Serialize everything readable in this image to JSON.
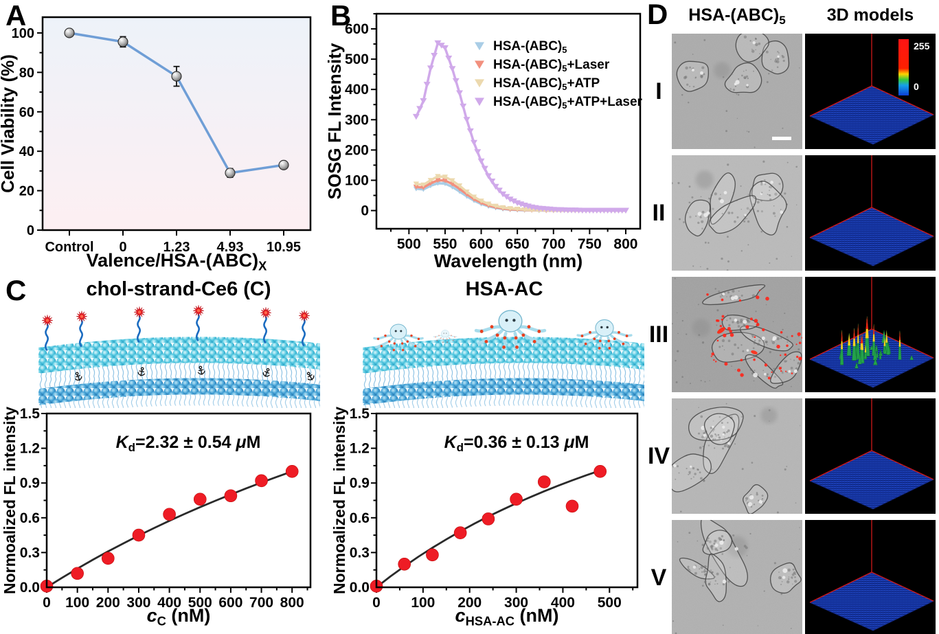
{
  "panels": {
    "a": {
      "label": "A"
    },
    "b": {
      "label": "B"
    },
    "c": {
      "label": "C"
    },
    "d": {
      "label": "D"
    }
  },
  "panelC": {
    "left_title": "chol-strand-Ce6 (C)",
    "right_title": "HSA-AC",
    "left_illustration": "lipid bilayer membrane with cholesterol-anchored DNA strands tipped with red Ce6 photosensitizers",
    "right_illustration": "lipid bilayer membrane with octopus-like HSA-AC proteins bearing red Ce6 dots"
  },
  "panelD": {
    "col1_header": [
      {
        "t": "HSA-(ABC)"
      },
      {
        "t": "5",
        "sub": true
      }
    ],
    "col2_header": "3D models",
    "rows": [
      {
        "label": "I",
        "has_red_signal": false,
        "has_peaks": false,
        "colorbar": true,
        "scalebar": true
      },
      {
        "label": "II",
        "has_red_signal": false,
        "has_peaks": false,
        "colorbar": false,
        "scalebar": false
      },
      {
        "label": "III",
        "has_red_signal": true,
        "has_peaks": true,
        "colorbar": false,
        "scalebar": false
      },
      {
        "label": "IV",
        "has_red_signal": false,
        "has_peaks": false,
        "colorbar": false,
        "scalebar": false
      },
      {
        "label": "V",
        "has_red_signal": false,
        "has_peaks": false,
        "colorbar": false,
        "scalebar": false
      }
    ],
    "colorbar": {
      "max": "255",
      "min": "0"
    }
  },
  "chart_data": [
    {
      "id": "cell_viability",
      "type": "line",
      "categories": [
        "Control",
        "0",
        "1.23",
        "4.93",
        "10.95"
      ],
      "values": [
        100,
        95.5,
        78,
        29,
        33
      ],
      "errors": [
        1.2,
        2.6,
        5,
        2.2,
        1.6
      ],
      "ylabel": "Cell Viability (%)",
      "xlabel_rich": [
        {
          "t": "Valence/HSA-(ABC)"
        },
        {
          "t": "X",
          "sub": true
        }
      ],
      "ylim": [
        0,
        108
      ],
      "yticks": [
        0,
        20,
        40,
        60,
        80,
        100
      ],
      "line_color": "#6f9ed6",
      "marker": "gray-sphere",
      "bg_gradient": [
        "#edf2f9",
        "#fdeff2"
      ],
      "grid": false
    },
    {
      "id": "sosg_spectra",
      "type": "line",
      "xlabel": "Wavelength (nm)",
      "ylabel": "SOSG FL Intensity",
      "xlim": [
        455,
        820
      ],
      "ylim": [
        -60,
        650
      ],
      "xticks": [
        500,
        550,
        600,
        650,
        700,
        750,
        800
      ],
      "yticks": [
        0,
        100,
        200,
        300,
        400,
        500,
        600
      ],
      "x_start": 510,
      "x_step": 10,
      "legend_position": "upper-right",
      "marker_shape": "triangle-down",
      "series": [
        {
          "name": [
            {
              "t": "HSA-(ABC)"
            },
            {
              "t": "5",
              "sub": true
            }
          ],
          "color": "#a9cde6",
          "values": [
            72,
            70,
            82,
            90,
            89,
            78,
            63,
            47,
            33,
            22,
            14,
            9,
            5,
            3,
            2,
            1,
            1,
            0,
            0,
            0,
            0,
            0,
            0,
            0,
            0,
            0,
            0,
            0,
            0,
            0
          ]
        },
        {
          "name": [
            {
              "t": "HSA-(ABC)"
            },
            {
              "t": "5",
              "sub": true
            },
            {
              "t": "+Laser"
            }
          ],
          "color": "#f2907e",
          "values": [
            78,
            76,
            90,
            100,
            99,
            88,
            72,
            54,
            38,
            26,
            17,
            11,
            7,
            4,
            3,
            2,
            1,
            1,
            0,
            0,
            0,
            0,
            0,
            0,
            0,
            0,
            0,
            0,
            0,
            0
          ]
        },
        {
          "name": [
            {
              "t": "HSA-(ABC)"
            },
            {
              "t": "5",
              "sub": true
            },
            {
              "t": "+ATP"
            }
          ],
          "color": "#ecd9ae",
          "values": [
            88,
            85,
            100,
            113,
            111,
            99,
            82,
            62,
            45,
            32,
            22,
            15,
            10,
            7,
            5,
            3,
            2,
            1,
            1,
            0,
            0,
            0,
            0,
            0,
            0,
            0,
            0,
            0,
            0,
            0
          ]
        },
        {
          "name": [
            {
              "t": "HSA-(ABC)"
            },
            {
              "t": "5",
              "sub": true
            },
            {
              "t": "+ATP+Laser"
            }
          ],
          "color": "#d0a9ea",
          "values": [
            310,
            362,
            470,
            553,
            537,
            468,
            388,
            300,
            224,
            163,
            114,
            79,
            54,
            37,
            25,
            17,
            11,
            7,
            5,
            3,
            2,
            1,
            1,
            0,
            0,
            0,
            0,
            0,
            0,
            0
          ]
        }
      ]
    },
    {
      "id": "binding_chol_strand_ce6",
      "type": "scatter",
      "points": [
        [
          0,
          0.01
        ],
        [
          100,
          0.12
        ],
        [
          200,
          0.25
        ],
        [
          300,
          0.45
        ],
        [
          400,
          0.63
        ],
        [
          500,
          0.76
        ],
        [
          600,
          0.79
        ],
        [
          700,
          0.92
        ],
        [
          800,
          1.0
        ]
      ],
      "fit_points": [
        [
          0,
          0
        ],
        [
          50,
          0.082
        ],
        [
          100,
          0.161
        ],
        [
          150,
          0.237
        ],
        [
          200,
          0.31
        ],
        [
          250,
          0.379
        ],
        [
          300,
          0.447
        ],
        [
          350,
          0.511
        ],
        [
          400,
          0.574
        ],
        [
          450,
          0.634
        ],
        [
          500,
          0.692
        ],
        [
          550,
          0.747
        ],
        [
          600,
          0.801
        ],
        [
          650,
          0.853
        ],
        [
          700,
          0.904
        ],
        [
          750,
          0.953
        ],
        [
          800,
          1.0
        ]
      ],
      "annotation": [
        {
          "t": "K",
          "italic": true
        },
        {
          "t": "d",
          "sub": true
        },
        {
          "t": "=2.32 ± 0.54 "
        },
        {
          "t": "μ",
          "italic": true
        },
        {
          "t": "M"
        }
      ],
      "xlabel_rich": [
        {
          "t": "c",
          "italic": true
        },
        {
          "t": "C",
          "sub": true
        },
        {
          "t": " (nM)"
        }
      ],
      "ylabel": "Normoalized FL intensity",
      "xlim": [
        0,
        860
      ],
      "ylim": [
        0,
        1.5
      ],
      "xticks": [
        0,
        100,
        200,
        300,
        400,
        500,
        600,
        700,
        800
      ],
      "yticks": [
        0.0,
        0.3,
        0.6,
        0.9,
        1.2,
        1.5
      ],
      "point_color": "#ee1c25",
      "fit_color": "#2a2a2a"
    },
    {
      "id": "binding_hsa_ac",
      "type": "scatter",
      "points": [
        [
          0,
          0.01
        ],
        [
          60,
          0.2
        ],
        [
          120,
          0.28
        ],
        [
          180,
          0.47
        ],
        [
          240,
          0.59
        ],
        [
          300,
          0.76
        ],
        [
          360,
          0.91
        ],
        [
          420,
          0.7
        ],
        [
          480,
          1.0
        ]
      ],
      "fit_points": [
        [
          0,
          0
        ],
        [
          30,
          0.094
        ],
        [
          60,
          0.181
        ],
        [
          90,
          0.264
        ],
        [
          120,
          0.341
        ],
        [
          150,
          0.414
        ],
        [
          180,
          0.483
        ],
        [
          210,
          0.549
        ],
        [
          240,
          0.611
        ],
        [
          270,
          0.669
        ],
        [
          300,
          0.725
        ],
        [
          330,
          0.778
        ],
        [
          360,
          0.829
        ],
        [
          390,
          0.877
        ],
        [
          420,
          0.923
        ],
        [
          450,
          0.967
        ],
        [
          480,
          1.008
        ]
      ],
      "annotation": [
        {
          "t": "K",
          "italic": true
        },
        {
          "t": "d",
          "sub": true
        },
        {
          "t": "=0.36 ± 0.13 "
        },
        {
          "t": "μ",
          "italic": true
        },
        {
          "t": "M"
        }
      ],
      "xlabel_rich": [
        {
          "t": "c",
          "italic": true
        },
        {
          "t": "HSA-AC",
          "sub": true
        },
        {
          "t": " (nM)"
        }
      ],
      "ylabel": "Normoalized FL intensity",
      "xlim": [
        0,
        560
      ],
      "ylim": [
        0,
        1.5
      ],
      "xticks": [
        0,
        100,
        200,
        300,
        400,
        500
      ],
      "yticks": [
        0.0,
        0.3,
        0.6,
        0.9,
        1.2,
        1.5
      ],
      "point_color": "#ee1c25",
      "fit_color": "#2a2a2a"
    }
  ]
}
